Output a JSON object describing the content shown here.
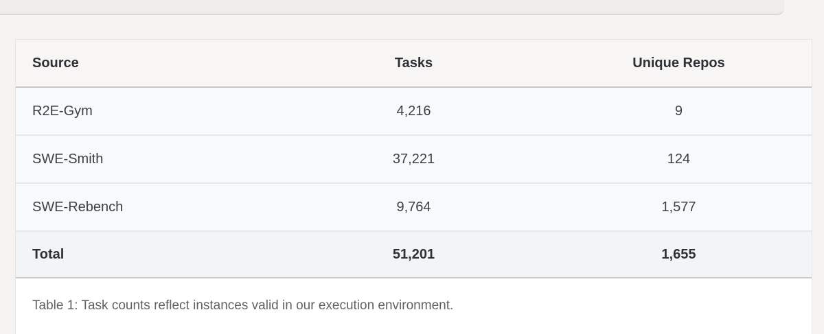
{
  "table": {
    "columns": [
      "Source",
      "Tasks",
      "Unique Repos"
    ],
    "rows": [
      {
        "source": "R2E-Gym",
        "tasks": "4,216",
        "repos": "9"
      },
      {
        "source": "SWE-Smith",
        "tasks": "37,221",
        "repos": "124"
      },
      {
        "source": "SWE-Rebench",
        "tasks": "9,764",
        "repos": "1,577"
      }
    ],
    "total": {
      "source": "Total",
      "tasks": "51,201",
      "repos": "1,655"
    }
  },
  "caption": "Table 1: Task counts reflect instances valid in our execution environment.",
  "colors": {
    "page_background": "#f5f4f2",
    "top_strip": "#eeedeb",
    "card_background": "#ffffff",
    "header_background": "#f7f6f5",
    "row_background": "#f8f9fa",
    "total_row_background": "#f3f4f5",
    "strong_border": "#c7c8ca",
    "light_border": "#e6e7e9",
    "text_dark": "#2d3135",
    "text_body": "#3c4043",
    "caption_text": "#5f6368"
  }
}
